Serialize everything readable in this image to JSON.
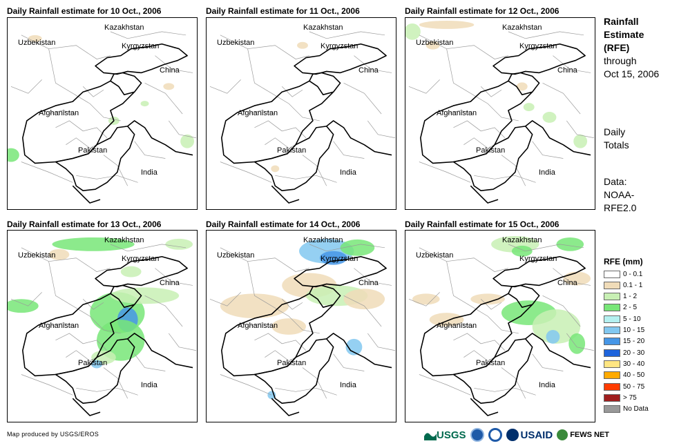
{
  "panels": [
    {
      "title": "Daily Rainfall estimate for 10 Oct., 2006"
    },
    {
      "title": "Daily Rainfall estimate for 11 Oct., 2006"
    },
    {
      "title": "Daily Rainfall estimate for 12 Oct., 2006"
    },
    {
      "title": "Daily Rainfall estimate for 13 Oct., 2006"
    },
    {
      "title": "Daily Rainfall estimate for 14 Oct., 2006"
    },
    {
      "title": "Daily Rainfall estimate for 15 Oct., 2006"
    }
  ],
  "map_labels": {
    "kazakhstan": "Kazakhstan",
    "kyrgyzstan": "Kyrgyzstan",
    "uzbekistan": "Uzbekistan",
    "china": "China",
    "afghanistan": "Afghanistan",
    "pakistan": "Pakistan",
    "india": "India"
  },
  "sidebar": {
    "title_1": "Rainfall",
    "title_2": "Estimate",
    "title_3": "(RFE)",
    "through": "through",
    "date": "Oct 15, 2006",
    "daily": "Daily",
    "totals": "Totals",
    "data_label": "Data:",
    "source_1": "NOAA-",
    "source_2": "RFE2.0"
  },
  "legend": {
    "title": "RFE (mm)",
    "items": [
      {
        "label": "0 - 0.1",
        "color": "#ffffff"
      },
      {
        "label": "0.1 - 1",
        "color": "#f0dcb9"
      },
      {
        "label": "1 - 2",
        "color": "#c8f0b4"
      },
      {
        "label": "2 - 5",
        "color": "#78e678"
      },
      {
        "label": "5 - 10",
        "color": "#b4f0f0"
      },
      {
        "label": "10 - 15",
        "color": "#82c8f0"
      },
      {
        "label": "15 - 20",
        "color": "#4696e6"
      },
      {
        "label": "20 - 30",
        "color": "#1e64dc"
      },
      {
        "label": "30 - 40",
        "color": "#ffe682"
      },
      {
        "label": "40 - 50",
        "color": "#ffaa00"
      },
      {
        "label": "50 - 75",
        "color": "#ff3c00"
      },
      {
        "label": "> 75",
        "color": "#a01e1e"
      },
      {
        "label": "No Data",
        "color": "#999999"
      }
    ]
  },
  "footer": "Map produced by USGS/EROS",
  "logos": {
    "usgs": "USGS",
    "usaid": "USAID",
    "fewsnet": "FEWS NET"
  }
}
